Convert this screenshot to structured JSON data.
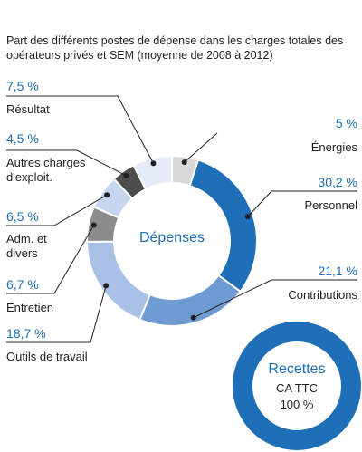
{
  "chart_data": {
    "type": "pie",
    "title": "Part des différents postes de dépense dans les charges totales des opérateurs privés et SEM (moyenne de 2008 à 2012)",
    "center_label": "Dépenses",
    "slices": [
      {
        "label": "Énergies",
        "value": 5,
        "value_label": "5 %",
        "color": "#d9d9d9"
      },
      {
        "label": "Personnel",
        "value": 30.2,
        "value_label": "30,2 %",
        "color": "#1e6fb8"
      },
      {
        "label": "Contributions",
        "value": 21.1,
        "value_label": "21,1 %",
        "color": "#6f9bd3"
      },
      {
        "label": "Outils de travail",
        "value": 18.7,
        "value_label": "18,7 %",
        "color": "#a9c1e6"
      },
      {
        "label": "Entretien",
        "value": 6.7,
        "value_label": "6,7 %",
        "color": "#8c8c8c"
      },
      {
        "label": "Adm. et divers",
        "value": 6.5,
        "value_label": "6,5 %",
        "color": "#c7d6ef"
      },
      {
        "label": "Autres charges d'exploit.",
        "value": 4.5,
        "value_label": "4,5 %",
        "color": "#4d4d4d"
      },
      {
        "label": "Résultat",
        "value": 7.5,
        "value_label": "7,5 %",
        "color": "#e6ecf7"
      }
    ],
    "secondary": {
      "type": "pie",
      "title": "Recettes",
      "label_line1": "CA TTC",
      "label_line2": "100 %",
      "value": 100,
      "color": "#1e6fb8"
    }
  }
}
